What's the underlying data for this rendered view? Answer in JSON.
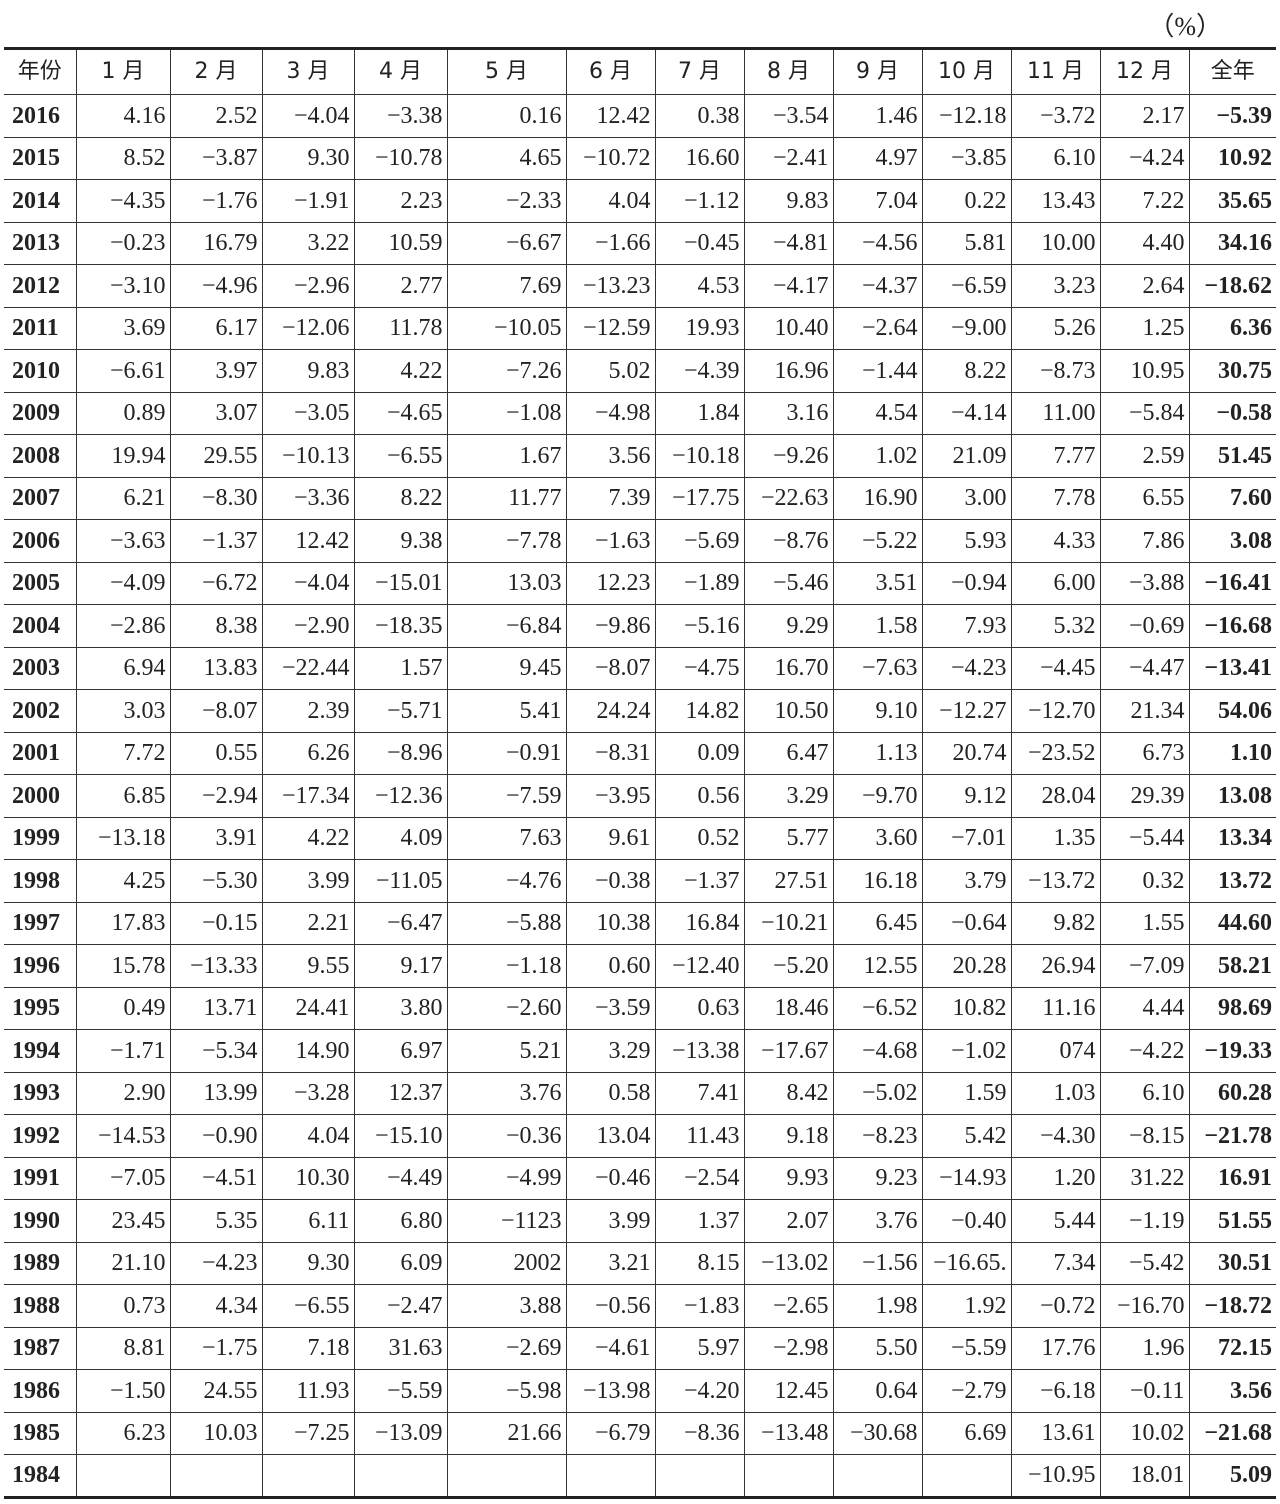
{
  "unit": "（%）",
  "table": {
    "headers": [
      "年份",
      "1 月",
      "2 月",
      "3 月",
      "4 月",
      "5 月",
      "6 月",
      "7 月",
      "8 月",
      "9 月",
      "10 月",
      "11 月",
      "12 月",
      "全年"
    ],
    "rows": [
      [
        "2016",
        "4.16",
        "2.52",
        "−4.04",
        "−3.38",
        "0.16",
        "12.42",
        "0.38",
        "−3.54",
        "1.46",
        "−12.18",
        "−3.72",
        "2.17",
        "−5.39"
      ],
      [
        "2015",
        "8.52",
        "−3.87",
        "9.30",
        "−10.78",
        "4.65",
        "−10.72",
        "16.60",
        "−2.41",
        "4.97",
        "−3.85",
        "6.10",
        "−4.24",
        "10.92"
      ],
      [
        "2014",
        "−4.35",
        "−1.76",
        "−1.91",
        "2.23",
        "−2.33",
        "4.04",
        "−1.12",
        "9.83",
        "7.04",
        "0.22",
        "13.43",
        "7.22",
        "35.65"
      ],
      [
        "2013",
        "−0.23",
        "16.79",
        "3.22",
        "10.59",
        "−6.67",
        "−1.66",
        "−0.45",
        "−4.81",
        "−4.56",
        "5.81",
        "10.00",
        "4.40",
        "34.16"
      ],
      [
        "2012",
        "−3.10",
        "−4.96",
        "−2.96",
        "2.77",
        "7.69",
        "−13.23",
        "4.53",
        "−4.17",
        "−4.37",
        "−6.59",
        "3.23",
        "2.64",
        "−18.62"
      ],
      [
        "2011",
        "3.69",
        "6.17",
        "−12.06",
        "11.78",
        "−10.05",
        "−12.59",
        "19.93",
        "10.40",
        "−2.64",
        "−9.00",
        "5.26",
        "1.25",
        "6.36"
      ],
      [
        "2010",
        "−6.61",
        "3.97",
        "9.83",
        "4.22",
        "−7.26",
        "5.02",
        "−4.39",
        "16.96",
        "−1.44",
        "8.22",
        "−8.73",
        "10.95",
        "30.75"
      ],
      [
        "2009",
        "0.89",
        "3.07",
        "−3.05",
        "−4.65",
        "−1.08",
        "−4.98",
        "1.84",
        "3.16",
        "4.54",
        "−4.14",
        "11.00",
        "−5.84",
        "−0.58"
      ],
      [
        "2008",
        "19.94",
        "29.55",
        "−10.13",
        "−6.55",
        "1.67",
        "3.56",
        "−10.18",
        "−9.26",
        "1.02",
        "21.09",
        "7.77",
        "2.59",
        "51.45"
      ],
      [
        "2007",
        "6.21",
        "−8.30",
        "−3.36",
        "8.22",
        "11.77",
        "7.39",
        "−17.75",
        "−22.63",
        "16.90",
        "3.00",
        "7.78",
        "6.55",
        "7.60"
      ],
      [
        "2006",
        "−3.63",
        "−1.37",
        "12.42",
        "9.38",
        "−7.78",
        "−1.63",
        "−5.69",
        "−8.76",
        "−5.22",
        "5.93",
        "4.33",
        "7.86",
        "3.08"
      ],
      [
        "2005",
        "−4.09",
        "−6.72",
        "−4.04",
        "−15.01",
        "13.03",
        "12.23",
        "−1.89",
        "−5.46",
        "3.51",
        "−0.94",
        "6.00",
        "−3.88",
        "−16.41"
      ],
      [
        "2004",
        "−2.86",
        "8.38",
        "−2.90",
        "−18.35",
        "−6.84",
        "−9.86",
        "−5.16",
        "9.29",
        "1.58",
        "7.93",
        "5.32",
        "−0.69",
        "−16.68"
      ],
      [
        "2003",
        "6.94",
        "13.83",
        "−22.44",
        "1.57",
        "9.45",
        "−8.07",
        "−4.75",
        "16.70",
        "−7.63",
        "−4.23",
        "−4.45",
        "−4.47",
        "−13.41"
      ],
      [
        "2002",
        "3.03",
        "−8.07",
        "2.39",
        "−5.71",
        "5.41",
        "24.24",
        "14.82",
        "10.50",
        "9.10",
        "−12.27",
        "−12.70",
        "21.34",
        "54.06"
      ],
      [
        "2001",
        "7.72",
        "0.55",
        "6.26",
        "−8.96",
        "−0.91",
        "−8.31",
        "0.09",
        "6.47",
        "1.13",
        "20.74",
        "−23.52",
        "6.73",
        "1.10"
      ],
      [
        "2000",
        "6.85",
        "−2.94",
        "−17.34",
        "−12.36",
        "−7.59",
        "−3.95",
        "0.56",
        "3.29",
        "−9.70",
        "9.12",
        "28.04",
        "29.39",
        "13.08"
      ],
      [
        "1999",
        "−13.18",
        "3.91",
        "4.22",
        "4.09",
        "7.63",
        "9.61",
        "0.52",
        "5.77",
        "3.60",
        "−7.01",
        "1.35",
        "−5.44",
        "13.34"
      ],
      [
        "1998",
        "4.25",
        "−5.30",
        "3.99",
        "−11.05",
        "−4.76",
        "−0.38",
        "−1.37",
        "27.51",
        "16.18",
        "3.79",
        "−13.72",
        "0.32",
        "13.72"
      ],
      [
        "1997",
        "17.83",
        "−0.15",
        "2.21",
        "−6.47",
        "−5.88",
        "10.38",
        "16.84",
        "−10.21",
        "6.45",
        "−0.64",
        "9.82",
        "1.55",
        "44.60"
      ],
      [
        "1996",
        "15.78",
        "−13.33",
        "9.55",
        "9.17",
        "−1.18",
        "0.60",
        "−12.40",
        "−5.20",
        "12.55",
        "20.28",
        "26.94",
        "−7.09",
        "58.21"
      ],
      [
        "1995",
        "0.49",
        "13.71",
        "24.41",
        "3.80",
        "−2.60",
        "−3.59",
        "0.63",
        "18.46",
        "−6.52",
        "10.82",
        "11.16",
        "4.44",
        "98.69"
      ],
      [
        "1994",
        "−1.71",
        "−5.34",
        "14.90",
        "6.97",
        "5.21",
        "3.29",
        "−13.38",
        "−17.67",
        "−4.68",
        "−1.02",
        "074",
        "−4.22",
        "−19.33"
      ],
      [
        "1993",
        "2.90",
        "13.99",
        "−3.28",
        "12.37",
        "3.76",
        "0.58",
        "7.41",
        "8.42",
        "−5.02",
        "1.59",
        "1.03",
        "6.10",
        "60.28"
      ],
      [
        "1992",
        "−14.53",
        "−0.90",
        "4.04",
        "−15.10",
        "−0.36",
        "13.04",
        "11.43",
        "9.18",
        "−8.23",
        "5.42",
        "−4.30",
        "−8.15",
        "−21.78"
      ],
      [
        "1991",
        "−7.05",
        "−4.51",
        "10.30",
        "−4.49",
        "−4.99",
        "−0.46",
        "−2.54",
        "9.93",
        "9.23",
        "−14.93",
        "1.20",
        "31.22",
        "16.91"
      ],
      [
        "1990",
        "23.45",
        "5.35",
        "6.11",
        "6.80",
        "−1123",
        "3.99",
        "1.37",
        "2.07",
        "3.76",
        "−0.40",
        "5.44",
        "−1.19",
        "51.55"
      ],
      [
        "1989",
        "21.10",
        "−4.23",
        "9.30",
        "6.09",
        "2002",
        "3.21",
        "8.15",
        "−13.02",
        "−1.56",
        "−16.65.",
        "7.34",
        "−5.42",
        "30.51"
      ],
      [
        "1988",
        "0.73",
        "4.34",
        "−6.55",
        "−2.47",
        "3.88",
        "−0.56",
        "−1.83",
        "−2.65",
        "1.98",
        "1.92",
        "−0.72",
        "−16.70",
        "−18.72"
      ],
      [
        "1987",
        "8.81",
        "−1.75",
        "7.18",
        "31.63",
        "−2.69",
        "−4.61",
        "5.97",
        "−2.98",
        "5.50",
        "−5.59",
        "17.76",
        "1.96",
        "72.15"
      ],
      [
        "1986",
        "−1.50",
        "24.55",
        "11.93",
        "−5.59",
        "−5.98",
        "−13.98",
        "−4.20",
        "12.45",
        "0.64",
        "−2.79",
        "−6.18",
        "−0.11",
        "3.56"
      ],
      [
        "1985",
        "6.23",
        "10.03",
        "−7.25",
        "−13.09",
        "21.66",
        "−6.79",
        "−8.36",
        "−13.48",
        "−30.68",
        "6.69",
        "13.61",
        "10.02",
        "−21.68"
      ],
      [
        "1984",
        "",
        "",
        "",
        "",
        "",
        "",
        "",
        "",
        "",
        "",
        "−10.95",
        "18.01",
        "5.09"
      ]
    ]
  }
}
